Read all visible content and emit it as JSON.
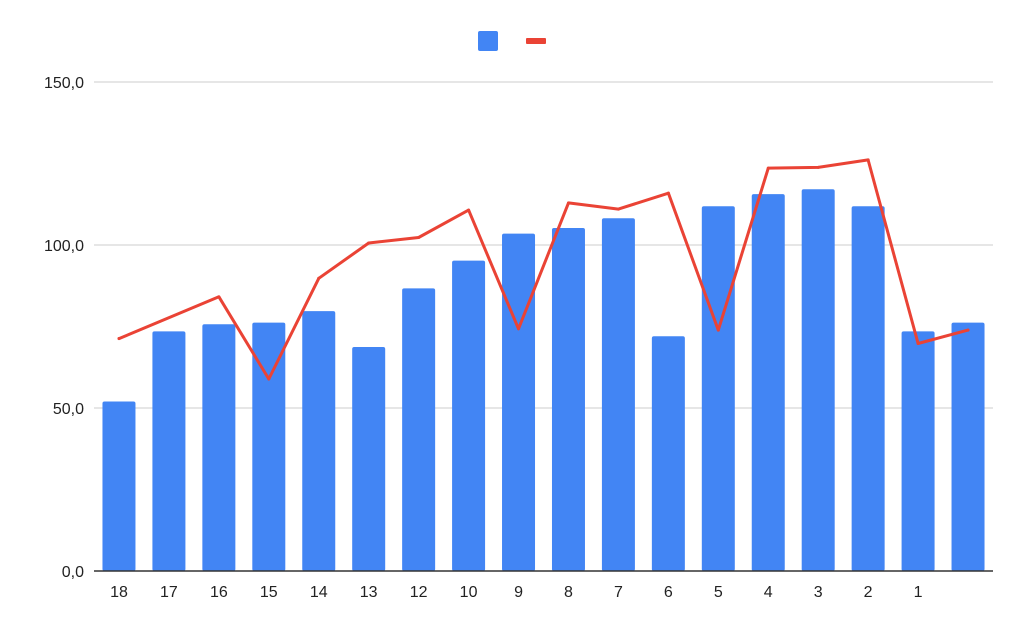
{
  "chart_data": {
    "type": "bar",
    "categories": [
      "18",
      "17",
      "16",
      "15",
      "14",
      "13",
      "12",
      "10",
      "9",
      "8",
      "7",
      "6",
      "5",
      "4",
      "3",
      "2",
      "1",
      ""
    ],
    "series": [
      {
        "type": "bar",
        "color": "#4285f4",
        "values": [
          52,
          73.5,
          75.7,
          76.2,
          79.7,
          68.7,
          86.7,
          95.2,
          103.5,
          105.2,
          108.2,
          72,
          111.9,
          115.6,
          117.1,
          111.9,
          73.5,
          76.2
        ]
      },
      {
        "type": "line",
        "color": "#ea4335",
        "values": [
          71.3,
          null,
          84.1,
          58.9,
          89.8,
          100.6,
          102.3,
          110.7,
          74.3,
          112.9,
          111,
          115.9,
          73.9,
          123.6,
          123.8,
          126.1,
          69.8,
          73.9
        ]
      }
    ],
    "yticks": [
      "0,0",
      "50,0",
      "100,0",
      "150,0"
    ],
    "ylim": [
      0,
      150
    ],
    "grid": true,
    "legend": "top-center"
  }
}
